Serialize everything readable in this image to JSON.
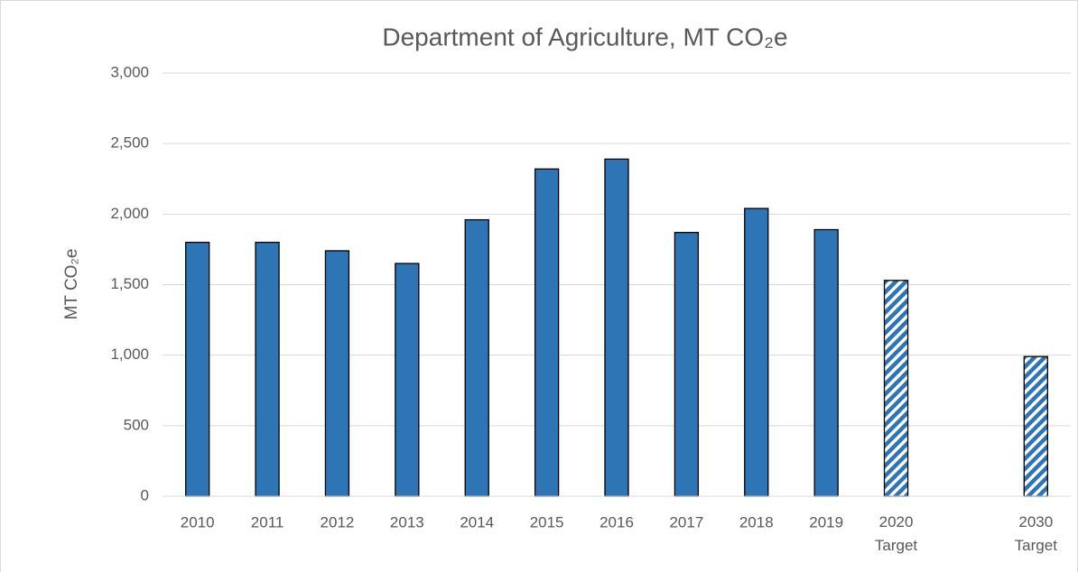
{
  "chart_data": {
    "type": "bar",
    "title": "Department of Agriculture, MT CO₂e",
    "y_label": "MT CO₂e",
    "categories": [
      "2010",
      "2011",
      "2012",
      "2013",
      "2014",
      "2015",
      "2016",
      "2017",
      "2018",
      "2019",
      "2020 Target",
      null,
      "2030 Target"
    ],
    "values": [
      1800,
      1800,
      1740,
      1650,
      1960,
      2320,
      2390,
      1870,
      2040,
      1890,
      1530,
      null,
      990
    ],
    "hatched": [
      false,
      false,
      false,
      false,
      false,
      false,
      false,
      false,
      false,
      false,
      true,
      false,
      true
    ],
    "color": "#2e75b6",
    "ylim": [
      0,
      3000
    ],
    "yticks": [
      0,
      500,
      {
        "value": 1000,
        "label": "1,000"
      },
      {
        "value": 1500,
        "label": "1,500"
      },
      {
        "value": 2000,
        "label": "2,000"
      },
      {
        "value": 2500,
        "label": "2,500"
      },
      {
        "value": 3000,
        "label": "3,000"
      }
    ],
    "grid": true
  }
}
